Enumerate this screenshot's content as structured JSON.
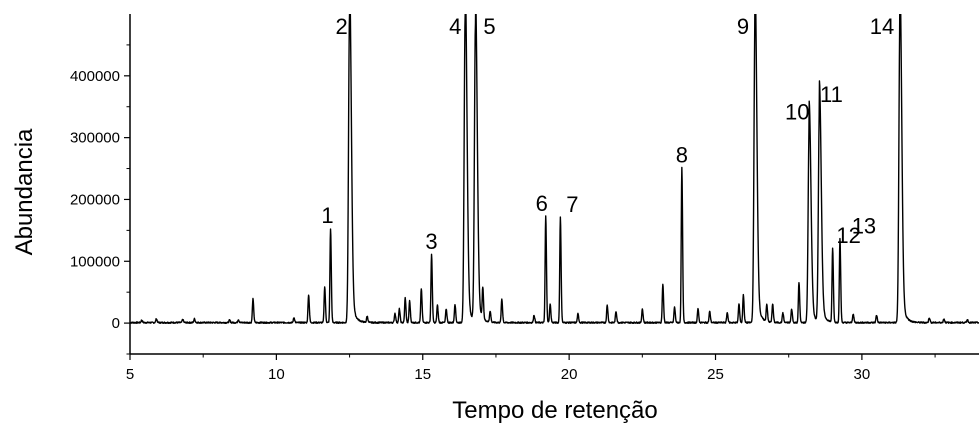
{
  "chart_data": {
    "type": "line",
    "title": "",
    "xlabel": "Tempo de retenção",
    "ylabel": "Abundancia",
    "xlim": [
      5,
      34
    ],
    "ylim": [
      -50000,
      500000
    ],
    "grid": false,
    "x_ticks": [
      5,
      10,
      15,
      20,
      25,
      30
    ],
    "x_tick_labels": [
      "5",
      "10",
      "15",
      "20",
      "25",
      "30"
    ],
    "x_minor_ticks": [
      7.5,
      12.5,
      17.5,
      22.5,
      27.5,
      32.5
    ],
    "y_ticks": [
      0,
      100000,
      200000,
      300000,
      400000
    ],
    "y_tick_labels": [
      "0",
      "100000",
      "200000",
      "300000",
      "400000"
    ],
    "y_minor_ticks": [
      -50000,
      50000,
      150000,
      250000,
      350000,
      450000
    ],
    "line_color": "#000000",
    "series": [
      {
        "peaks": [
          {
            "rt": 5.4,
            "height": 4000
          },
          {
            "rt": 5.9,
            "height": 6000
          },
          {
            "rt": 6.8,
            "height": 5000
          },
          {
            "rt": 7.2,
            "height": 6000
          },
          {
            "rt": 8.4,
            "height": 4000
          },
          {
            "rt": 8.7,
            "height": 5000
          },
          {
            "rt": 9.2,
            "height": 38000
          },
          {
            "rt": 10.6,
            "height": 8000
          },
          {
            "rt": 11.1,
            "height": 45000
          },
          {
            "rt": 11.65,
            "height": 58000
          },
          {
            "rt": 11.85,
            "height": 152000
          },
          {
            "rt": 12.5,
            "height": 500000
          },
          {
            "rt": 13.1,
            "height": 10000
          },
          {
            "rt": 14.05,
            "height": 15000
          },
          {
            "rt": 14.2,
            "height": 22000
          },
          {
            "rt": 14.4,
            "height": 40000
          },
          {
            "rt": 14.55,
            "height": 35000
          },
          {
            "rt": 14.95,
            "height": 55000
          },
          {
            "rt": 15.3,
            "height": 110000
          },
          {
            "rt": 15.5,
            "height": 28000
          },
          {
            "rt": 15.8,
            "height": 22000
          },
          {
            "rt": 16.1,
            "height": 30000
          },
          {
            "rt": 16.45,
            "height": 500000
          },
          {
            "rt": 16.8,
            "height": 480000
          },
          {
            "rt": 17.05,
            "height": 50000
          },
          {
            "rt": 17.3,
            "height": 18000
          },
          {
            "rt": 17.7,
            "height": 38000
          },
          {
            "rt": 18.8,
            "height": 12000
          },
          {
            "rt": 19.2,
            "height": 172000
          },
          {
            "rt": 19.35,
            "height": 30000
          },
          {
            "rt": 19.7,
            "height": 170000
          },
          {
            "rt": 20.3,
            "height": 14000
          },
          {
            "rt": 21.3,
            "height": 28000
          },
          {
            "rt": 21.6,
            "height": 18000
          },
          {
            "rt": 22.5,
            "height": 22000
          },
          {
            "rt": 23.2,
            "height": 62000
          },
          {
            "rt": 23.6,
            "height": 25000
          },
          {
            "rt": 23.85,
            "height": 250000
          },
          {
            "rt": 24.4,
            "height": 22000
          },
          {
            "rt": 24.8,
            "height": 18000
          },
          {
            "rt": 25.4,
            "height": 16000
          },
          {
            "rt": 25.8,
            "height": 30000
          },
          {
            "rt": 25.95,
            "height": 45000
          },
          {
            "rt": 26.35,
            "height": 500000
          },
          {
            "rt": 26.75,
            "height": 28000
          },
          {
            "rt": 26.95,
            "height": 30000
          },
          {
            "rt": 27.3,
            "height": 16000
          },
          {
            "rt": 27.6,
            "height": 22000
          },
          {
            "rt": 27.85,
            "height": 65000
          },
          {
            "rt": 28.2,
            "height": 320000
          },
          {
            "rt": 28.55,
            "height": 348000
          },
          {
            "rt": 29.0,
            "height": 120000
          },
          {
            "rt": 29.25,
            "height": 135000
          },
          {
            "rt": 29.7,
            "height": 14000
          },
          {
            "rt": 30.5,
            "height": 12000
          },
          {
            "rt": 31.3,
            "height": 500000
          },
          {
            "rt": 32.3,
            "height": 8000
          },
          {
            "rt": 32.8,
            "height": 6000
          },
          {
            "rt": 33.6,
            "height": 5000
          }
        ]
      }
    ],
    "peak_annotations": [
      {
        "label": "1",
        "x": 11.85,
        "y": 152000
      },
      {
        "label": "2",
        "x": 12.5,
        "y": 500000
      },
      {
        "label": "3",
        "x": 15.3,
        "y": 110000
      },
      {
        "label": "4",
        "x": 16.45,
        "y": 500000
      },
      {
        "label": "5",
        "x": 16.8,
        "y": 480000
      },
      {
        "label": "6",
        "x": 19.2,
        "y": 172000
      },
      {
        "label": "7",
        "x": 19.7,
        "y": 170000
      },
      {
        "label": "8",
        "x": 23.85,
        "y": 250000
      },
      {
        "label": "9",
        "x": 26.35,
        "y": 500000
      },
      {
        "label": "10",
        "x": 28.2,
        "y": 320000
      },
      {
        "label": "11",
        "x": 28.55,
        "y": 348000
      },
      {
        "label": "12",
        "x": 29.0,
        "y": 120000
      },
      {
        "label": "13",
        "x": 29.25,
        "y": 135000
      },
      {
        "label": "14",
        "x": 31.3,
        "y": 500000
      }
    ]
  }
}
